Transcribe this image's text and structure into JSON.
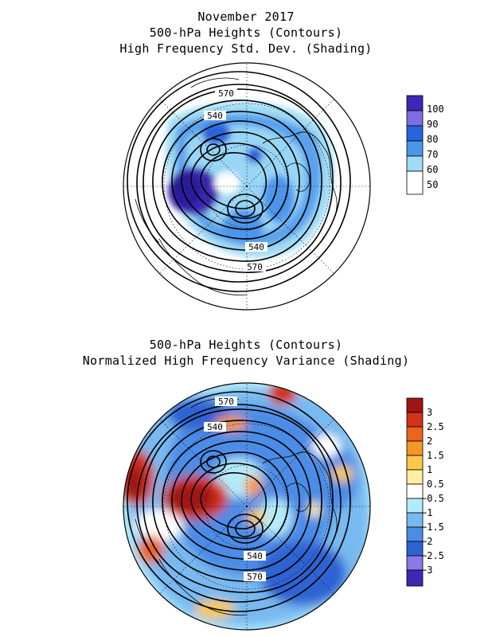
{
  "top_panel": {
    "title_lines": [
      "November 2017",
      "500-hPa Heights (Contours)",
      "High Frequency Std. Dev. (Shading)"
    ],
    "contour_labels": [
      "570",
      "540",
      "540",
      "570"
    ],
    "colorbar": {
      "labels": [
        "100",
        "90",
        "80",
        "70",
        "60",
        "50"
      ],
      "colors": [
        "#3c28b4",
        "#7d6ee6",
        "#2864dc",
        "#4b96eb",
        "#a0dcf5",
        "#ffffff"
      ]
    }
  },
  "bottom_panel": {
    "title_lines": [
      "500-hPa Heights (Contours)",
      "Normalized High Frequency Variance (Shading)"
    ],
    "contour_labels": [
      "570",
      "540",
      "540",
      "570"
    ],
    "colorbar": {
      "labels": [
        "3",
        "2.5",
        "2",
        "1.5",
        "1",
        "0.5",
        "−0.5",
        "−1",
        "−1.5",
        "−2",
        "−2.5",
        "−3"
      ],
      "colors": [
        "#a01414",
        "#d23219",
        "#eb641e",
        "#f59628",
        "#fac84b",
        "#fff0a0",
        "#ffffff",
        "#b4ebfa",
        "#78b9f0",
        "#4b8ce6",
        "#2d64d2",
        "#8c78e6",
        "#3c28b4"
      ]
    }
  }
}
